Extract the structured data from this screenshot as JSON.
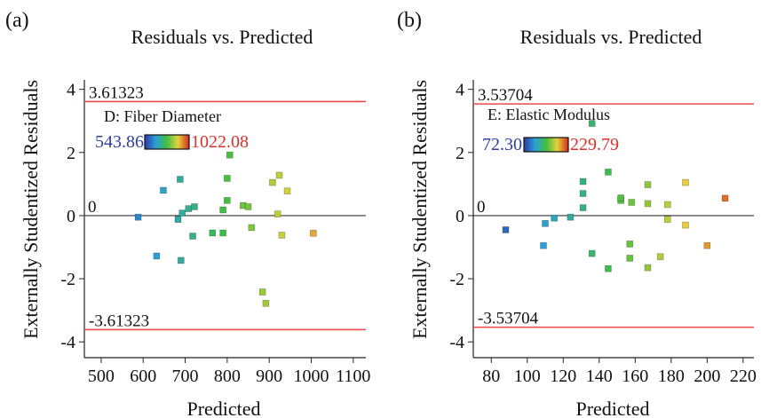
{
  "chart_data": [
    {
      "type": "scatter",
      "panel_label": "(a)",
      "title": "Residuals vs. Predicted",
      "xlabel": "Predicted",
      "ylabel": "Externally Studentized Residuals",
      "xlim": [
        460,
        1130
      ],
      "ylim": [
        -4.5,
        4.3
      ],
      "xticks": [
        500,
        600,
        700,
        800,
        900,
        1000,
        1100
      ],
      "yticks": [
        -4,
        -2,
        0,
        2,
        4
      ],
      "grid": false,
      "limit_upper": 3.61323,
      "limit_lower": -3.61323,
      "limit_upper_label": "3.61323",
      "limit_lower_label": "-3.61323",
      "zero_label": "0",
      "legend": {
        "label": "D: Fiber Diameter",
        "min_label": "543.86",
        "max_label": "1022.08",
        "min_value": 543.86,
        "max_value": 1022.08
      },
      "points": [
        {
          "x": 588,
          "y": -0.05
        },
        {
          "x": 632,
          "y": -1.28
        },
        {
          "x": 648,
          "y": 0.8
        },
        {
          "x": 683,
          "y": -0.12
        },
        {
          "x": 688,
          "y": 1.15
        },
        {
          "x": 690,
          "y": -1.42
        },
        {
          "x": 693,
          "y": 0.08
        },
        {
          "x": 708,
          "y": 0.22
        },
        {
          "x": 718,
          "y": -0.65
        },
        {
          "x": 722,
          "y": 0.28
        },
        {
          "x": 765,
          "y": -0.55
        },
        {
          "x": 790,
          "y": -0.55
        },
        {
          "x": 790,
          "y": 0.18
        },
        {
          "x": 800,
          "y": 0.48
        },
        {
          "x": 800,
          "y": 1.18
        },
        {
          "x": 806,
          "y": 1.92
        },
        {
          "x": 838,
          "y": 0.32
        },
        {
          "x": 850,
          "y": 0.28
        },
        {
          "x": 858,
          "y": -0.38
        },
        {
          "x": 884,
          "y": -2.42
        },
        {
          "x": 892,
          "y": -2.78
        },
        {
          "x": 908,
          "y": 1.05
        },
        {
          "x": 920,
          "y": 0.05
        },
        {
          "x": 924,
          "y": 1.28
        },
        {
          "x": 930,
          "y": -0.62
        },
        {
          "x": 943,
          "y": 0.78
        },
        {
          "x": 1005,
          "y": -0.56
        }
      ]
    },
    {
      "type": "scatter",
      "panel_label": "(b)",
      "title": "Residuals vs. Predicted",
      "xlabel": "Predicted",
      "ylabel": "Externally Studentized Residuals",
      "xlim": [
        70,
        226
      ],
      "ylim": [
        -4.5,
        4.3
      ],
      "xticks": [
        80,
        100,
        120,
        140,
        160,
        180,
        200,
        220
      ],
      "yticks": [
        -4,
        -2,
        0,
        2,
        4
      ],
      "grid": false,
      "limit_upper": 3.53704,
      "limit_lower": -3.53704,
      "limit_upper_label": "3.53704",
      "limit_lower_label": "-3.53704",
      "zero_label": "0",
      "legend": {
        "label": "E: Elastic Modulus",
        "min_label": "72.30",
        "max_label": "229.79",
        "min_value": 72.3,
        "max_value": 229.79
      },
      "points": [
        {
          "x": 88,
          "y": -0.45
        },
        {
          "x": 109,
          "y": -0.95
        },
        {
          "x": 110,
          "y": -0.25
        },
        {
          "x": 115,
          "y": -0.08
        },
        {
          "x": 124,
          "y": -0.05
        },
        {
          "x": 131,
          "y": 0.25
        },
        {
          "x": 131,
          "y": 0.7
        },
        {
          "x": 131,
          "y": 1.08
        },
        {
          "x": 136,
          "y": -1.2
        },
        {
          "x": 136,
          "y": 2.92
        },
        {
          "x": 145,
          "y": -1.68
        },
        {
          "x": 145,
          "y": 1.38
        },
        {
          "x": 152,
          "y": 0.48
        },
        {
          "x": 152,
          "y": 0.56
        },
        {
          "x": 157,
          "y": -0.9
        },
        {
          "x": 157,
          "y": -1.35
        },
        {
          "x": 158,
          "y": 0.42
        },
        {
          "x": 167,
          "y": -1.65
        },
        {
          "x": 167,
          "y": 0.38
        },
        {
          "x": 167,
          "y": 0.98
        },
        {
          "x": 174,
          "y": -1.3
        },
        {
          "x": 178,
          "y": 0.35
        },
        {
          "x": 178,
          "y": -0.12
        },
        {
          "x": 188,
          "y": -0.3
        },
        {
          "x": 188,
          "y": 1.05
        },
        {
          "x": 200,
          "y": -0.95
        },
        {
          "x": 210,
          "y": 0.55
        }
      ]
    }
  ]
}
